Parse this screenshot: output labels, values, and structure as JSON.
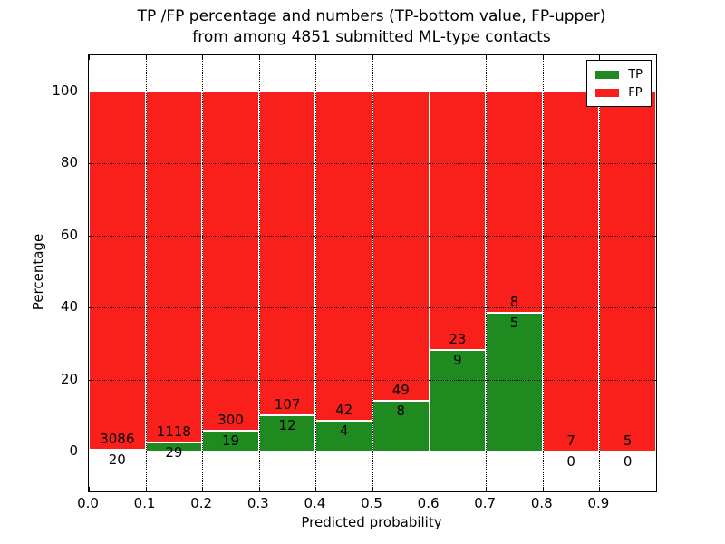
{
  "title_line1": "TP /FP percentage and numbers (TP-bottom value, FP-upper)",
  "title_line2": "from among 4851 submitted ML-type contacts",
  "chart_data": {
    "type": "bar",
    "stacked": true,
    "title": "TP /FP percentage and numbers (TP-bottom value, FP-upper) from among 4851 submitted ML-type contacts",
    "xlabel": "Predicted probability",
    "ylabel": "Percentage",
    "x_tick_labels": [
      "0.0",
      "0.1",
      "0.2",
      "0.3",
      "0.4",
      "0.5",
      "0.6",
      "0.7",
      "0.8",
      "0.9"
    ],
    "y_ticks": [
      0,
      20,
      40,
      60,
      80,
      100
    ],
    "y_tick_labels": [
      "0",
      "20",
      "40",
      "60",
      "80",
      "100"
    ],
    "xlim": [
      0.0,
      1.0
    ],
    "ylim": [
      -11,
      110
    ],
    "bin_width": 0.1,
    "grid": true,
    "bar_unit": "percent of bin total (TP+FP stack to 100%)",
    "series": [
      {
        "name": "TP",
        "color": "#1f8a1f",
        "counts": [
          20,
          29,
          19,
          12,
          4,
          8,
          9,
          5,
          0,
          0
        ]
      },
      {
        "name": "FP",
        "color": "#f91f1a",
        "counts": [
          3086,
          1118,
          300,
          107,
          42,
          49,
          23,
          8,
          7,
          5
        ]
      }
    ],
    "legend": {
      "position": "upper right",
      "entries": [
        "TP",
        "FP"
      ]
    }
  }
}
